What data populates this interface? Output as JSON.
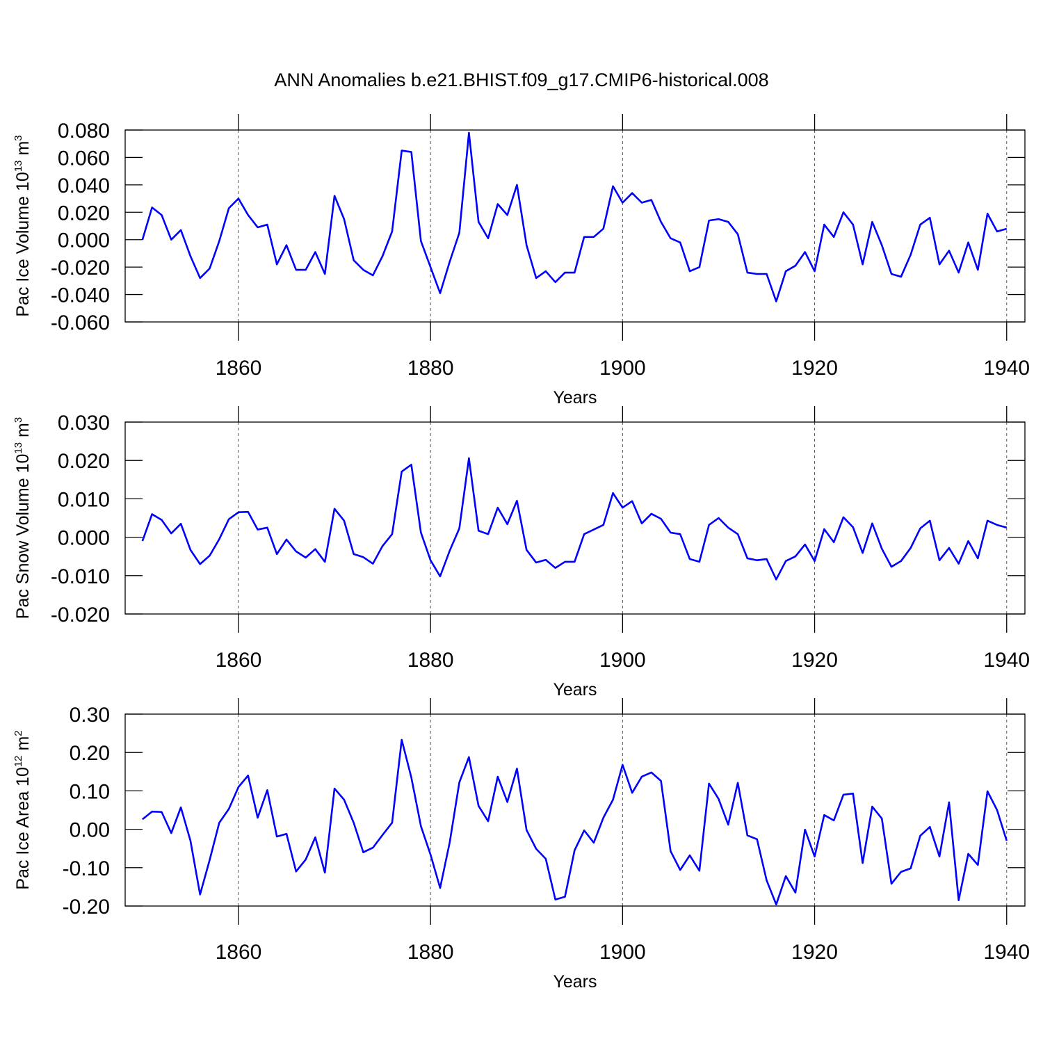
{
  "chart_data": [
    {
      "type": "line",
      "title": "ANN Anomalies b.e21.BHIST.f09_g17.CMIP6-historical.008",
      "ylabel": {
        "text": "Pac Ice Volume 10",
        "sup": "13",
        "unit": " m",
        "unit_sup": "3"
      },
      "xlabel": "Years",
      "color": "#0000ff",
      "grid": "x",
      "xlim": [
        1848.2,
        1941.9
      ],
      "xticks": [
        1860,
        1880,
        1900,
        1920,
        1940
      ],
      "ylim": [
        -0.06,
        0.08
      ],
      "yticks": [
        {
          "value": 0.08,
          "label": "0.080"
        },
        {
          "value": 0.06,
          "label": "0.060"
        },
        {
          "value": 0.04,
          "label": "0.040"
        },
        {
          "value": 0.02,
          "label": "0.020"
        },
        {
          "value": 0,
          "label": "0.000"
        },
        {
          "value": -0.02,
          "label": "-0.020"
        },
        {
          "value": -0.04,
          "label": "-0.040"
        },
        {
          "value": -0.06,
          "label": "-0.060"
        }
      ],
      "x": [
        1850,
        1851,
        1852,
        1853,
        1854,
        1855,
        1856,
        1857,
        1858,
        1859,
        1860,
        1861,
        1862,
        1863,
        1864,
        1865,
        1866,
        1867,
        1868,
        1869,
        1870,
        1871,
        1872,
        1873,
        1874,
        1875,
        1876,
        1877,
        1878,
        1879,
        1880,
        1881,
        1882,
        1883,
        1884,
        1885,
        1886,
        1887,
        1888,
        1889,
        1890,
        1891,
        1892,
        1893,
        1894,
        1895,
        1896,
        1897,
        1898,
        1899,
        1900,
        1901,
        1902,
        1903,
        1904,
        1905,
        1906,
        1907,
        1908,
        1909,
        1910,
        1911,
        1912,
        1913,
        1914,
        1915,
        1916,
        1917,
        1918,
        1919,
        1920,
        1921,
        1922,
        1923,
        1924,
        1925,
        1926,
        1927,
        1928,
        1929,
        1930,
        1931,
        1932,
        1933,
        1934,
        1935,
        1936,
        1937,
        1938,
        1939,
        1940
      ],
      "values": [
        0.0,
        0.0235,
        0.018,
        0.0,
        0.007,
        -0.012,
        -0.028,
        -0.021,
        -0.001,
        0.023,
        0.03,
        0.018,
        0.009,
        0.011,
        -0.018,
        -0.004,
        -0.022,
        -0.022,
        -0.009,
        -0.025,
        0.032,
        0.015,
        -0.015,
        -0.022,
        -0.026,
        -0.012,
        0.006,
        0.065,
        0.064,
        -0.001,
        -0.02,
        -0.039,
        -0.016,
        0.005,
        0.078,
        0.013,
        0.001,
        0.026,
        0.018,
        0.04,
        -0.004,
        -0.028,
        -0.023,
        -0.031,
        -0.024,
        -0.024,
        0.002,
        0.002,
        0.008,
        0.039,
        0.027,
        0.034,
        0.027,
        0.029,
        0.013,
        0.001,
        -0.002,
        -0.023,
        -0.02,
        0.014,
        0.015,
        0.013,
        0.004,
        -0.024,
        -0.025,
        -0.025,
        -0.045,
        -0.023,
        -0.019,
        -0.009,
        -0.023,
        0.011,
        0.002,
        0.02,
        0.011,
        -0.018,
        0.013,
        -0.004,
        -0.025,
        -0.027,
        -0.011,
        0.011,
        0.016,
        -0.018,
        -0.008,
        -0.024,
        -0.002,
        -0.022,
        0.019,
        0.006,
        0.008
      ]
    },
    {
      "type": "line",
      "ylabel": {
        "text": "Pac Snow Volume 10",
        "sup": "13",
        "unit": " m",
        "unit_sup": "3"
      },
      "xlabel": "Years",
      "color": "#0000ff",
      "grid": "x",
      "xlim": [
        1848.2,
        1941.9
      ],
      "xticks": [
        1860,
        1880,
        1900,
        1920,
        1940
      ],
      "ylim": [
        -0.02,
        0.03
      ],
      "yticks": [
        {
          "value": 0.03,
          "label": "0.030"
        },
        {
          "value": 0.02,
          "label": "0.020"
        },
        {
          "value": 0.01,
          "label": "0.010"
        },
        {
          "value": 0,
          "label": "0.000"
        },
        {
          "value": -0.01,
          "label": "-0.010"
        },
        {
          "value": -0.02,
          "label": "-0.020"
        }
      ],
      "x": [
        1850,
        1851,
        1852,
        1853,
        1854,
        1855,
        1856,
        1857,
        1858,
        1859,
        1860,
        1861,
        1862,
        1863,
        1864,
        1865,
        1866,
        1867,
        1868,
        1869,
        1870,
        1871,
        1872,
        1873,
        1874,
        1875,
        1876,
        1877,
        1878,
        1879,
        1880,
        1881,
        1882,
        1883,
        1884,
        1885,
        1886,
        1887,
        1888,
        1889,
        1890,
        1891,
        1892,
        1893,
        1894,
        1895,
        1896,
        1897,
        1898,
        1899,
        1900,
        1901,
        1902,
        1903,
        1904,
        1905,
        1906,
        1907,
        1908,
        1909,
        1910,
        1911,
        1912,
        1913,
        1914,
        1915,
        1916,
        1917,
        1918,
        1919,
        1920,
        1921,
        1922,
        1923,
        1924,
        1925,
        1926,
        1927,
        1928,
        1929,
        1930,
        1931,
        1932,
        1933,
        1934,
        1935,
        1936,
        1937,
        1938,
        1939,
        1940
      ],
      "values": [
        -0.001,
        0.006,
        0.0045,
        0.001,
        0.0035,
        -0.0033,
        -0.007,
        -0.0048,
        -0.0005,
        0.0047,
        0.0065,
        0.0066,
        0.002,
        0.0025,
        -0.0044,
        -0.0006,
        -0.0037,
        -0.0053,
        -0.0031,
        -0.0064,
        0.0074,
        0.0043,
        -0.0044,
        -0.0052,
        -0.0069,
        -0.0023,
        0.0008,
        0.0171,
        0.0189,
        0.0012,
        -0.006,
        -0.0102,
        -0.0035,
        0.0023,
        0.0206,
        0.0017,
        0.0008,
        0.0077,
        0.0034,
        0.0095,
        -0.0033,
        -0.0066,
        -0.0059,
        -0.008,
        -0.0064,
        -0.0064,
        0.0008,
        0.002,
        0.0032,
        0.0115,
        0.0077,
        0.0094,
        0.0036,
        0.0061,
        0.0048,
        0.0012,
        0.0008,
        -0.0057,
        -0.0064,
        0.0032,
        0.005,
        0.0025,
        0.0008,
        -0.0055,
        -0.006,
        -0.0057,
        -0.011,
        -0.0062,
        -0.005,
        -0.0019,
        -0.0062,
        0.0021,
        -0.0013,
        0.0052,
        0.0026,
        -0.0041,
        0.0036,
        -0.003,
        -0.0077,
        -0.0062,
        -0.0028,
        0.0023,
        0.0043,
        -0.006,
        -0.0028,
        -0.0069,
        -0.001,
        -0.0055,
        0.0043,
        0.0032,
        0.0025
      ]
    },
    {
      "type": "line",
      "ylabel": {
        "text": "Pac Ice Area 10",
        "sup": "12",
        "unit": " m",
        "unit_sup": "2"
      },
      "xlabel": "Years",
      "color": "#0000ff",
      "grid": "x",
      "xlim": [
        1848.2,
        1941.9
      ],
      "xticks": [
        1860,
        1880,
        1900,
        1920,
        1940
      ],
      "ylim": [
        -0.2,
        0.3
      ],
      "yticks": [
        {
          "value": 0.3,
          "label": "0.30"
        },
        {
          "value": 0.2,
          "label": "0.20"
        },
        {
          "value": 0.1,
          "label": "0.10"
        },
        {
          "value": 0,
          "label": "0.00"
        },
        {
          "value": -0.1,
          "label": "-0.10"
        },
        {
          "value": -0.2,
          "label": "-0.20"
        }
      ],
      "x": [
        1850,
        1851,
        1852,
        1853,
        1854,
        1855,
        1856,
        1857,
        1858,
        1859,
        1860,
        1861,
        1862,
        1863,
        1864,
        1865,
        1866,
        1867,
        1868,
        1869,
        1870,
        1871,
        1872,
        1873,
        1874,
        1875,
        1876,
        1877,
        1878,
        1879,
        1880,
        1881,
        1882,
        1883,
        1884,
        1885,
        1886,
        1887,
        1888,
        1889,
        1890,
        1891,
        1892,
        1893,
        1894,
        1895,
        1896,
        1897,
        1898,
        1899,
        1900,
        1901,
        1902,
        1903,
        1904,
        1905,
        1906,
        1907,
        1908,
        1909,
        1910,
        1911,
        1912,
        1913,
        1914,
        1915,
        1916,
        1917,
        1918,
        1919,
        1920,
        1921,
        1922,
        1923,
        1924,
        1925,
        1926,
        1927,
        1928,
        1929,
        1930,
        1931,
        1932,
        1933,
        1934,
        1935,
        1936,
        1937,
        1938,
        1939,
        1940
      ],
      "values": [
        0.026,
        0.046,
        0.045,
        -0.01,
        0.057,
        -0.03,
        -0.17,
        -0.08,
        0.017,
        0.053,
        0.11,
        0.14,
        0.03,
        0.102,
        -0.019,
        -0.012,
        -0.11,
        -0.079,
        -0.021,
        -0.113,
        0.106,
        0.077,
        0.017,
        -0.06,
        -0.048,
        -0.015,
        0.017,
        0.233,
        0.135,
        0.008,
        -0.066,
        -0.153,
        -0.034,
        0.122,
        0.188,
        0.061,
        0.021,
        0.137,
        0.071,
        0.158,
        -0.002,
        -0.051,
        -0.077,
        -0.183,
        -0.176,
        -0.055,
        -0.003,
        -0.035,
        0.03,
        0.077,
        0.168,
        0.095,
        0.137,
        0.148,
        0.126,
        -0.057,
        -0.106,
        -0.068,
        -0.108,
        0.119,
        0.079,
        0.012,
        0.121,
        -0.016,
        -0.026,
        -0.133,
        -0.196,
        -0.122,
        -0.165,
        -0.001,
        -0.071,
        0.037,
        0.023,
        0.09,
        0.093,
        -0.088,
        0.059,
        0.028,
        -0.142,
        -0.111,
        -0.102,
        -0.017,
        0.006,
        -0.071,
        0.07,
        -0.185,
        -0.064,
        -0.093,
        0.099,
        0.05,
        -0.03
      ]
    }
  ]
}
